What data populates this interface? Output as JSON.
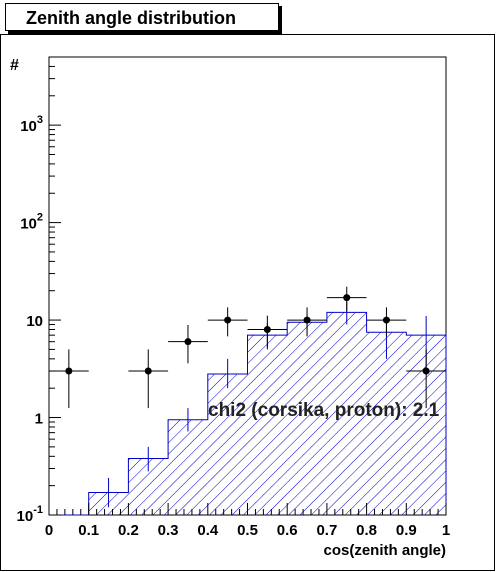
{
  "chart_data": {
    "type": "histogram",
    "title": "Zenith angle distribution",
    "xlabel": "cos(zenith angle)",
    "ylabel": "#",
    "xlim": [
      0,
      1
    ],
    "ylim": [
      0.1,
      5000
    ],
    "yscale": "log",
    "grid": false,
    "x_ticks": [
      "0",
      "0.1",
      "0.2",
      "0.3",
      "0.4",
      "0.5",
      "0.6",
      "0.7",
      "0.8",
      "0.9",
      "1"
    ],
    "y_ticks": [
      {
        "base": "10",
        "exp": "-1"
      },
      {
        "base": "1",
        "exp": ""
      },
      {
        "base": "10",
        "exp": ""
      },
      {
        "base": "10",
        "exp": "2"
      },
      {
        "base": "10",
        "exp": "3"
      }
    ],
    "annotation": "chi2 (corsika, proton): 2.1",
    "colors": {
      "simulation": "#0000cc",
      "data": "#000000"
    },
    "simulation": {
      "bin_edges": [
        0,
        0.1,
        0.2,
        0.3,
        0.4,
        0.5,
        0.6,
        0.7,
        0.8,
        0.9,
        1.0
      ],
      "values": [
        0,
        0.17,
        0.38,
        0.95,
        2.8,
        7.0,
        9.5,
        12.0,
        7.5,
        7.0
      ],
      "err_low": [
        0,
        0.12,
        0.28,
        0.72,
        2.0,
        5.3,
        7.3,
        9.0,
        4.0,
        2.8
      ],
      "err_high": [
        0,
        0.24,
        0.5,
        1.25,
        4.0,
        9.2,
        11.5,
        15.5,
        10.5,
        11.0
      ]
    },
    "data_points": {
      "x": [
        0.05,
        0.25,
        0.35,
        0.45,
        0.55,
        0.65,
        0.75,
        0.85,
        0.95
      ],
      "y": [
        3,
        3,
        6,
        10,
        8,
        10,
        17,
        10,
        3
      ],
      "err_low": [
        1.25,
        1.25,
        3.6,
        6.8,
        5.0,
        6.8,
        12.3,
        6.8,
        1.25
      ],
      "err_high": [
        5.0,
        5.0,
        8.9,
        13.5,
        11.1,
        13.5,
        22.0,
        13.5,
        5.0
      ]
    }
  }
}
